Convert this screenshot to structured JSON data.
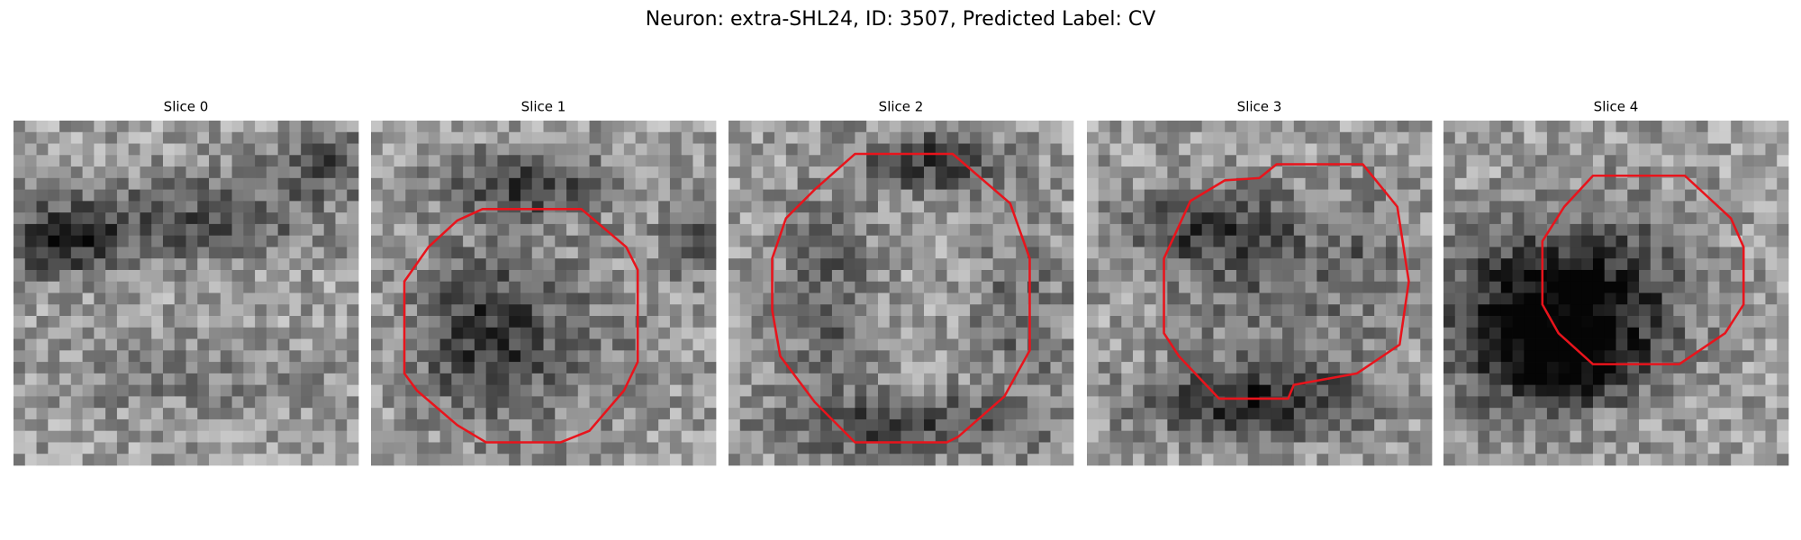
{
  "title": "Neuron: extra-SHL24, ID: 3507, Predicted Label: CV",
  "panels": [
    {
      "title": "Slice 0"
    },
    {
      "title": "Slice 1"
    },
    {
      "title": "Slice 2"
    },
    {
      "title": "Slice 3"
    },
    {
      "title": "Slice 4"
    }
  ]
}
